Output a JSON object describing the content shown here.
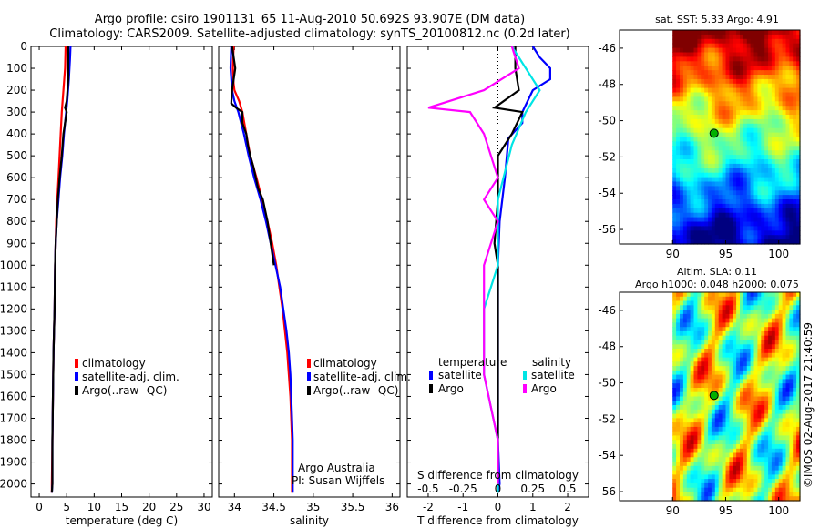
{
  "header": {
    "line1": "Argo profile: csiro 1901131_65 11-Aug-2010 50.692S 93.907E (DM data)",
    "line2": "Climatology: CARS2009. Satellite-adjusted climatology: synTS_20100812.nc (0.2d later)"
  },
  "colors": {
    "climatology": "#ff0000",
    "satellite": "#0000ff",
    "argo": "#000000",
    "s_satellite": "#00e5e5",
    "s_argo": "#ff00ff"
  },
  "chart_data": [
    {
      "type": "line",
      "xlabel": "temperature (deg C)",
      "ylabel": "",
      "xlim": [
        -1.5,
        31.5
      ],
      "ylim": [
        0,
        2060
      ],
      "x_ticks": [
        0,
        5,
        10,
        15,
        20,
        25,
        30
      ],
      "y_ticks": [
        0,
        100,
        200,
        300,
        400,
        500,
        600,
        700,
        800,
        900,
        1000,
        1100,
        1200,
        1300,
        1400,
        1500,
        1600,
        1700,
        1800,
        1900,
        2000
      ],
      "legend_position": "center",
      "series": [
        {
          "name": "climatology",
          "color": "#ff0000",
          "points": [
            [
              4.8,
              0
            ],
            [
              4.7,
              100
            ],
            [
              4.4,
              200
            ],
            [
              4.1,
              300
            ],
            [
              3.9,
              400
            ],
            [
              3.7,
              500
            ],
            [
              3.5,
              600
            ],
            [
              3.3,
              700
            ],
            [
              3.1,
              800
            ],
            [
              3.0,
              900
            ],
            [
              2.9,
              1000
            ],
            [
              2.8,
              1200
            ],
            [
              2.6,
              1400
            ],
            [
              2.5,
              1600
            ],
            [
              2.4,
              1800
            ],
            [
              2.3,
              2000
            ],
            [
              2.3,
              2040
            ]
          ]
        },
        {
          "name": "satellite-adj. clim.",
          "color": "#0000ff",
          "points": [
            [
              5.7,
              0
            ],
            [
              5.6,
              60
            ],
            [
              5.4,
              150
            ],
            [
              5.1,
              250
            ],
            [
              4.9,
              300
            ],
            [
              4.5,
              400
            ],
            [
              4.2,
              500
            ],
            [
              3.8,
              600
            ],
            [
              3.5,
              700
            ],
            [
              3.2,
              800
            ],
            [
              3.0,
              900
            ],
            [
              2.9,
              1000
            ],
            [
              2.8,
              1200
            ],
            [
              2.6,
              1400
            ],
            [
              2.5,
              1600
            ],
            [
              2.4,
              1800
            ],
            [
              2.4,
              2000
            ],
            [
              2.3,
              2040
            ]
          ]
        },
        {
          "name": "Argo(..raw -QC)",
          "color": "#000000",
          "points": [
            [
              5.3,
              0
            ],
            [
              5.3,
              150
            ],
            [
              5.0,
              250
            ],
            [
              4.7,
              280
            ],
            [
              5.0,
              300
            ],
            [
              4.4,
              400
            ],
            [
              4.1,
              500
            ],
            [
              3.7,
              600
            ],
            [
              3.4,
              700
            ],
            [
              3.2,
              800
            ],
            [
              3.0,
              900
            ],
            [
              2.9,
              1000
            ],
            [
              2.8,
              1200
            ],
            [
              2.6,
              1400
            ],
            [
              2.5,
              1600
            ],
            [
              2.4,
              1800
            ],
            [
              2.4,
              2000
            ],
            [
              2.3,
              2040
            ]
          ]
        }
      ]
    },
    {
      "type": "line",
      "xlabel": "salinity",
      "ylabel": "",
      "xlim": [
        33.8,
        36.1
      ],
      "ylim": [
        0,
        2060
      ],
      "x_ticks": [
        34,
        34.5,
        35,
        35.5,
        36
      ],
      "legend_position": "center",
      "series": [
        {
          "name": "climatology",
          "color": "#ff0000",
          "points": [
            [
              33.99,
              0
            ],
            [
              33.98,
              100
            ],
            [
              33.99,
              170
            ],
            [
              34.0,
              200
            ],
            [
              34.06,
              250
            ],
            [
              34.1,
              300
            ],
            [
              34.15,
              400
            ],
            [
              34.2,
              500
            ],
            [
              34.28,
              600
            ],
            [
              34.35,
              700
            ],
            [
              34.42,
              800
            ],
            [
              34.48,
              900
            ],
            [
              34.53,
              1000
            ],
            [
              34.57,
              1100
            ],
            [
              34.61,
              1200
            ],
            [
              34.64,
              1300
            ],
            [
              34.67,
              1400
            ],
            [
              34.69,
              1500
            ],
            [
              34.71,
              1600
            ],
            [
              34.72,
              1700
            ],
            [
              34.73,
              1800
            ],
            [
              34.73,
              1900
            ],
            [
              34.73,
              2000
            ],
            [
              34.73,
              2040
            ]
          ]
        },
        {
          "name": "satellite-adj. clim.",
          "color": "#0000ff",
          "points": [
            [
              33.96,
              0
            ],
            [
              33.95,
              100
            ],
            [
              33.97,
              200
            ],
            [
              34.0,
              250
            ],
            [
              34.05,
              300
            ],
            [
              34.12,
              400
            ],
            [
              34.18,
              500
            ],
            [
              34.25,
              600
            ],
            [
              34.33,
              700
            ],
            [
              34.4,
              800
            ],
            [
              34.46,
              900
            ],
            [
              34.52,
              1000
            ],
            [
              34.58,
              1100
            ],
            [
              34.62,
              1200
            ],
            [
              34.66,
              1300
            ],
            [
              34.69,
              1400
            ],
            [
              34.71,
              1500
            ],
            [
              34.72,
              1600
            ],
            [
              34.73,
              1700
            ],
            [
              34.74,
              1800
            ],
            [
              34.74,
              1900
            ],
            [
              34.74,
              2000
            ],
            [
              34.74,
              2040
            ]
          ]
        },
        {
          "name": "Argo(..raw -QC)",
          "color": "#000000",
          "points": [
            [
              33.97,
              0
            ],
            [
              34.01,
              100
            ],
            [
              33.97,
              200
            ],
            [
              33.96,
              260
            ],
            [
              34.02,
              280
            ],
            [
              34.1,
              300
            ],
            [
              34.1,
              350
            ],
            [
              34.15,
              400
            ],
            [
              34.17,
              450
            ],
            [
              34.2,
              500
            ],
            [
              34.24,
              550
            ],
            [
              34.27,
              600
            ],
            [
              34.3,
              650
            ],
            [
              34.36,
              700
            ],
            [
              34.42,
              800
            ],
            [
              34.46,
              900
            ],
            [
              34.5,
              1000
            ]
          ]
        }
      ]
    },
    {
      "type": "line",
      "xlabel": "T difference from climatology",
      "xlabel2": "S difference from climatology",
      "ylabel": "",
      "xlim": [
        -2.6,
        2.6
      ],
      "ylim": [
        0,
        2060
      ],
      "x_ticks": [
        -2,
        -1,
        0,
        1,
        2
      ],
      "x2_ticks": [
        -0.5,
        -0.25,
        0,
        0.25,
        0.5
      ],
      "legend_position": "top",
      "series": [
        {
          "name": "temperature satellite",
          "color": "#0000ff",
          "points": [
            [
              1.0,
              0
            ],
            [
              1.2,
              50
            ],
            [
              1.5,
              100
            ],
            [
              1.5,
              150
            ],
            [
              1.0,
              200
            ],
            [
              0.7,
              300
            ],
            [
              0.7,
              350
            ],
            [
              0.3,
              420
            ],
            [
              0.2,
              600
            ],
            [
              0.05,
              800
            ],
            [
              0.0,
              1000
            ],
            [
              0.0,
              1500
            ],
            [
              0.0,
              1800
            ],
            [
              0.05,
              2000
            ],
            [
              0.0,
              2040
            ]
          ]
        },
        {
          "name": "temperature Argo",
          "color": "#000000",
          "points": [
            [
              0.5,
              0
            ],
            [
              0.5,
              100
            ],
            [
              0.6,
              200
            ],
            [
              -0.1,
              280
            ],
            [
              0.7,
              300
            ],
            [
              0.4,
              400
            ],
            [
              0.0,
              500
            ],
            [
              0.0,
              700
            ],
            [
              -0.1,
              900
            ],
            [
              0.0,
              1000
            ],
            [
              0.0,
              1500
            ],
            [
              0.0,
              1800
            ],
            [
              0.0,
              2000
            ],
            [
              0.0,
              2040
            ]
          ]
        },
        {
          "name": "salinity satellite",
          "color": "#00e5e5",
          "points": [
            [
              0.1,
              0
            ],
            [
              0.2,
              100
            ],
            [
              0.3,
              200
            ],
            [
              0.2,
              300
            ],
            [
              0.1,
              450
            ],
            [
              0.0,
              700
            ],
            [
              0.0,
              1000
            ],
            [
              -0.1,
              1200
            ],
            [
              -0.1,
              1500
            ],
            [
              0.0,
              1800
            ],
            [
              0.0,
              2040
            ]
          ]
        },
        {
          "name": "salinity Argo",
          "color": "#ff00ff",
          "points": [
            [
              0.1,
              0
            ],
            [
              0.15,
              100
            ],
            [
              -0.1,
              200
            ],
            [
              -0.5,
              280
            ],
            [
              -0.2,
              300
            ],
            [
              -0.1,
              400
            ],
            [
              0.0,
              600
            ],
            [
              -0.1,
              700
            ],
            [
              0.0,
              800
            ],
            [
              -0.1,
              1000
            ],
            [
              -0.1,
              1500
            ],
            [
              0.0,
              1800
            ],
            [
              0.0,
              2000
            ]
          ]
        }
      ]
    },
    {
      "type": "heatmap",
      "title": "sat. SST: 5.33 Argo: 4.91",
      "xlim": [
        85,
        102
      ],
      "ylim": [
        -56.8,
        -45
      ],
      "x_ticks": [
        90,
        95,
        100
      ],
      "y_ticks": [
        -46,
        -48,
        -50,
        -52,
        -54,
        -56
      ],
      "marker": {
        "lon": 93.907,
        "lat": -50.692
      }
    },
    {
      "type": "heatmap",
      "title": "Altim. SLA: 0.11",
      "subtitle": "Argo h1000: 0.048 h2000: 0.075",
      "xlim": [
        85,
        102
      ],
      "ylim": [
        -56.5,
        -45
      ],
      "x_ticks": [
        90,
        95,
        100
      ],
      "y_ticks": [
        -46,
        -48,
        -50,
        -52,
        -54,
        -56
      ],
      "marker": {
        "lon": 93.907,
        "lat": -50.692
      }
    }
  ],
  "legends": {
    "profile": [
      "climatology",
      "satellite-adj. clim.",
      "Argo(..raw -QC)"
    ],
    "diff": {
      "col1_title": "temperature",
      "col2_title": "salinity",
      "col1": [
        "satellite",
        "Argo"
      ],
      "col2": [
        "satellite",
        "Argo"
      ]
    }
  },
  "credit": {
    "line1": "Argo Australia",
    "line2": "PI: Susan Wijffels"
  },
  "stamp": "©IMOS 02-Aug-2017 21:40:59"
}
